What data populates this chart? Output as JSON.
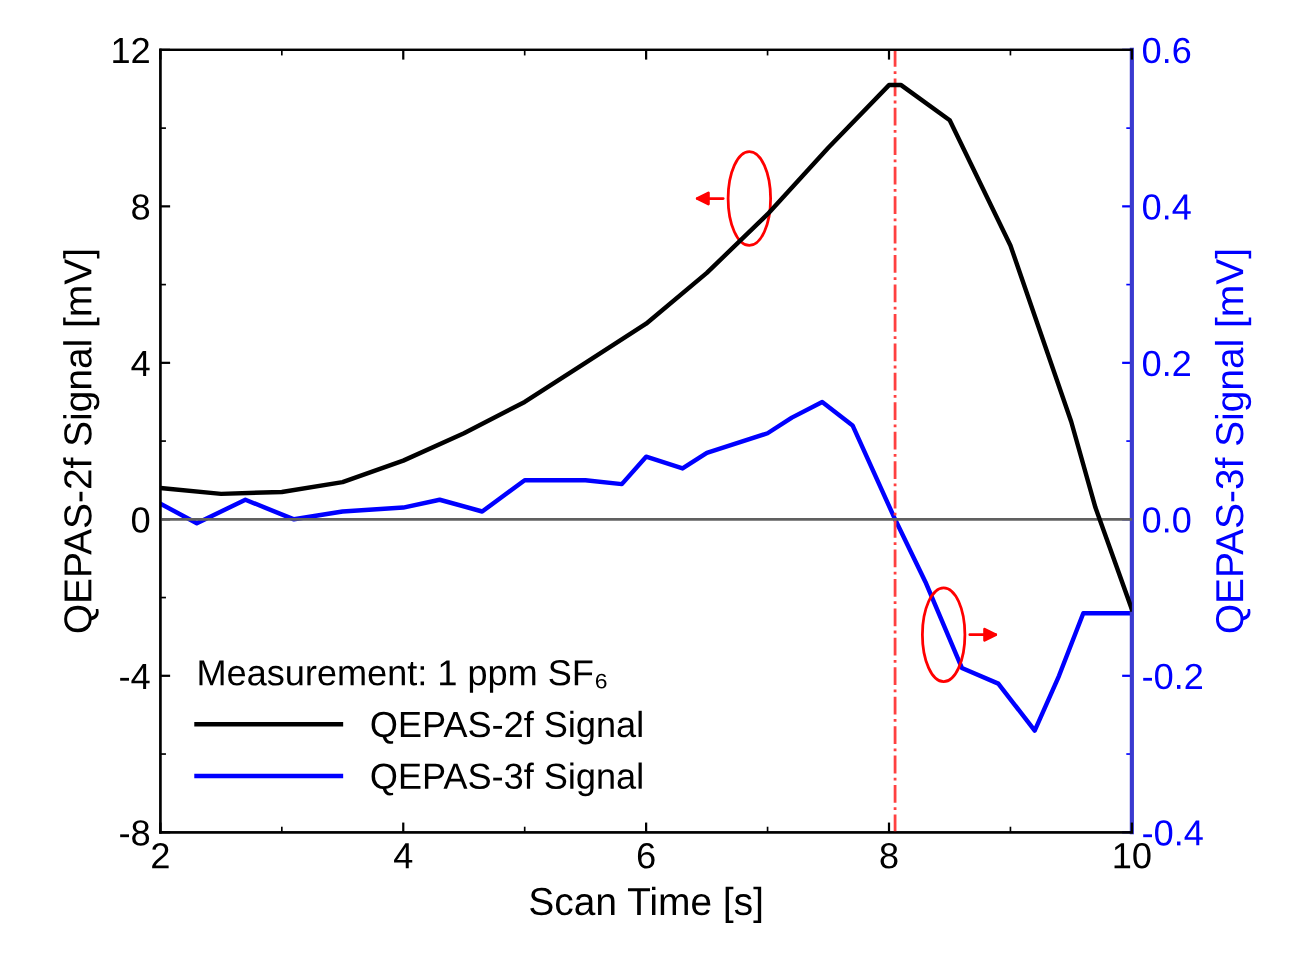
{
  "chart_data": {
    "type": "line",
    "xlabel": "Scan Time [s]",
    "ylabel": "QEPAS-2f Signal [mV]",
    "y2label": "QEPAS-3f Signal [mV]",
    "legend_title": "Measurement: 1 ppm SF₆",
    "legend": "bottom left",
    "grid": false,
    "marker": "none",
    "line_style": "solid",
    "xlim": [
      2,
      10
    ],
    "xticks": [
      2,
      4,
      6,
      8,
      10
    ],
    "ylim": [
      -8,
      12
    ],
    "yticks": [
      -8,
      -4,
      0,
      4,
      8,
      12
    ],
    "y2lim": [
      -0.4,
      0.6
    ],
    "y2ticks": [
      {
        "value": -0.4,
        "label": "-0.4"
      },
      {
        "value": -0.2,
        "label": "-0.2"
      },
      {
        "value": 0.0,
        "label": "0.0"
      },
      {
        "value": 0.2,
        "label": "0.2"
      },
      {
        "value": 0.4,
        "label": "0.4"
      },
      {
        "value": 0.6,
        "label": "0.6"
      }
    ],
    "ref_lines": [
      {
        "axis": "x",
        "value": 8.05,
        "label": null,
        "color": "#ff4040",
        "line_style": "dashdot"
      },
      {
        "axis": "y",
        "value": 0,
        "label": null,
        "color": "#606060",
        "line_style": "solid"
      }
    ],
    "series": [
      {
        "name": "QEPAS-2f Signal",
        "color": "#000000",
        "x": [
          2,
          2.5,
          3,
          3.5,
          4,
          4.5,
          5,
          5.5,
          6,
          6.5,
          7,
          7.5,
          8,
          8.1,
          8.5,
          9,
          9.5,
          9.7,
          10
        ],
        "values": [
          0.8,
          0.65,
          0.7,
          0.95,
          1.5,
          2.2,
          3.0,
          4.0,
          5.0,
          6.3,
          7.8,
          9.5,
          11.1,
          11.1,
          10.2,
          7.0,
          2.5,
          0.3,
          -2.3
        ]
      },
      {
        "name": "QEPAS-3f Signal",
        "color": "#0000ff",
        "axis": "y2",
        "x": [
          2,
          2.3,
          2.7,
          3.1,
          3.5,
          4,
          4.3,
          4.65,
          5,
          5.5,
          5.8,
          6,
          6.3,
          6.5,
          7,
          7.2,
          7.45,
          7.7,
          8.05,
          8.3,
          8.6,
          8.9,
          9.2,
          9.4,
          9.6,
          10
        ],
        "values": [
          0.02,
          -0.005,
          0.025,
          0,
          0.01,
          0.015,
          0.025,
          0.01,
          0.05,
          0.05,
          0.045,
          0.08,
          0.065,
          0.085,
          0.11,
          0.13,
          0.15,
          0.12,
          0.0,
          -0.08,
          -0.19,
          -0.21,
          -0.27,
          -0.2,
          -0.12,
          -0.12
        ]
      }
    ]
  }
}
